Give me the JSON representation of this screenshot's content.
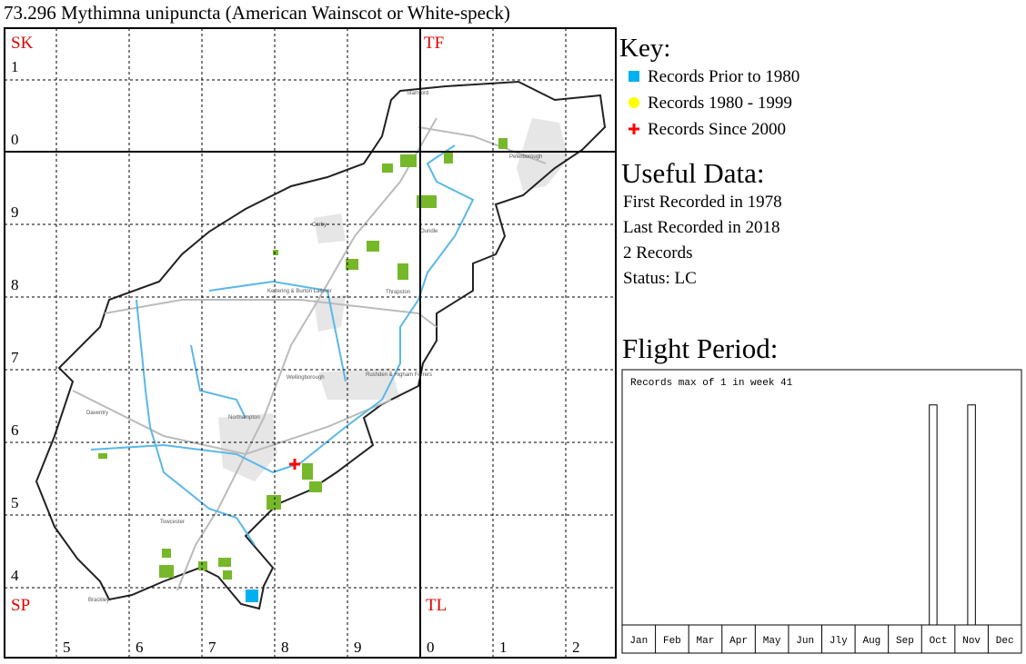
{
  "title": "73.296 Mythimna unipuncta (American Wainscot or White-speck)",
  "map": {
    "squares": [
      "SK",
      "TF",
      "SP",
      "TL"
    ],
    "y_labels": [
      "1",
      "0",
      "9",
      "8",
      "7",
      "6",
      "5",
      "4"
    ],
    "x_labels": [
      "5",
      "6",
      "7",
      "8",
      "9",
      "0",
      "1",
      "2"
    ],
    "places": [
      "Stamford",
      "Peterborough",
      "Corby",
      "Oundle",
      "Thrapston",
      "Kettering & Burton Latimer",
      "Wellingborough",
      "Rushden & Higham Ferrers",
      "Daventry",
      "Northampton",
      "Towcester",
      "Brackley"
    ]
  },
  "key": {
    "title": "Key:",
    "items": [
      {
        "label": "Records Prior to 1980",
        "color": "#00b0f0"
      },
      {
        "label": "Records 1980 - 1999",
        "color": "#ffff00"
      },
      {
        "label": "Records Since 2000",
        "color": "#ff0000"
      }
    ]
  },
  "useful_data": {
    "title": "Useful Data:",
    "lines": [
      "First Recorded in 1978",
      "Last Recorded in 2018",
      "2 Records",
      "Status: LC"
    ]
  },
  "flight_chart": {
    "type": "bar",
    "title": "Flight Period:",
    "note": "Records max of 1 in week 41",
    "months": [
      "Jan",
      "Feb",
      "Mar",
      "Apr",
      "May",
      "Jun",
      "Jly",
      "Aug",
      "Sep",
      "Oct",
      "Nov",
      "Dec"
    ],
    "x": [
      41,
      46
    ],
    "values": [
      1,
      1
    ],
    "xlim": [
      1,
      53
    ],
    "ylim": [
      0,
      1.16
    ]
  }
}
